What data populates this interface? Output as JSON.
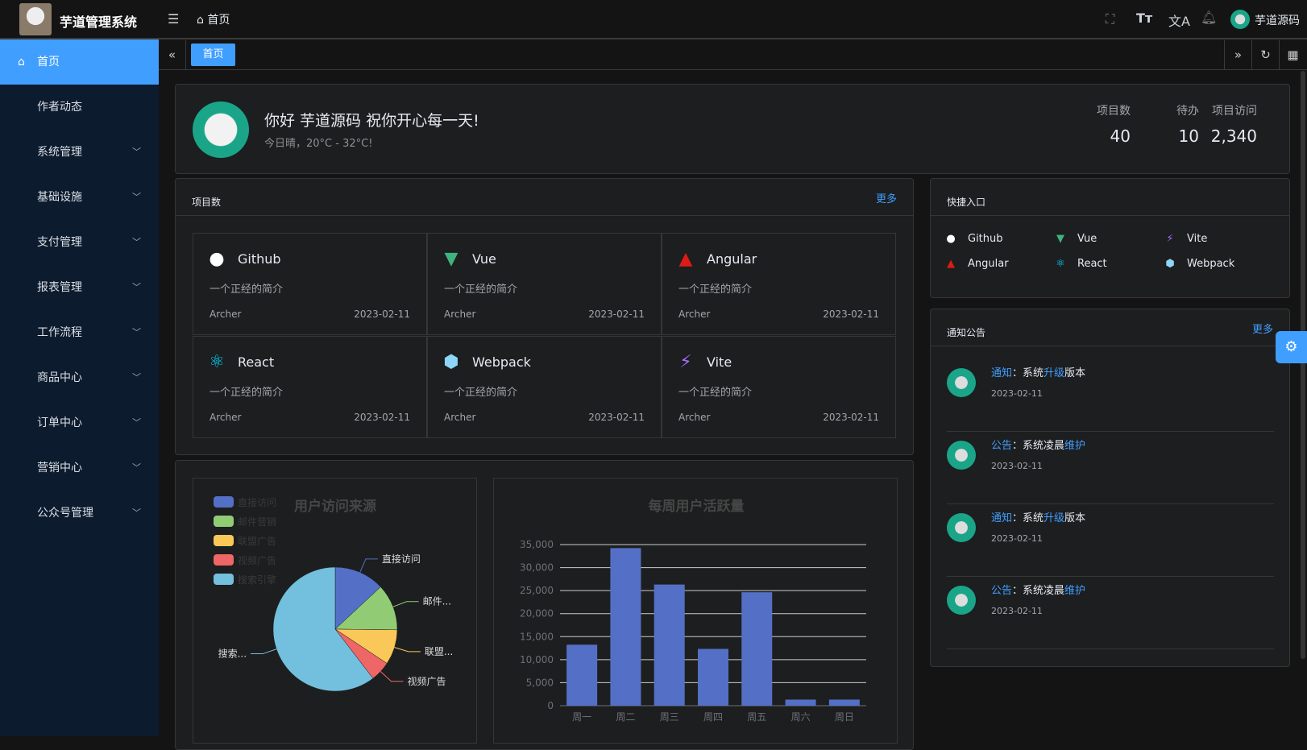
{
  "header": {
    "app_title": "芋道管理系统",
    "breadcrumb": "首页",
    "username": "芋道源码"
  },
  "sidebar": {
    "items": [
      {
        "label": "首页",
        "active": true,
        "expandable": false
      },
      {
        "label": "作者动态",
        "expandable": false
      },
      {
        "label": "系统管理",
        "expandable": true
      },
      {
        "label": "基础设施",
        "expandable": true
      },
      {
        "label": "支付管理",
        "expandable": true
      },
      {
        "label": "报表管理",
        "expandable": true
      },
      {
        "label": "工作流程",
        "expandable": true
      },
      {
        "label": "商品中心",
        "expandable": true
      },
      {
        "label": "订单中心",
        "expandable": true
      },
      {
        "label": "营销中心",
        "expandable": true
      },
      {
        "label": "公众号管理",
        "expandable": true
      }
    ]
  },
  "tabs": [
    {
      "label": "首页",
      "active": true
    }
  ],
  "welcome": {
    "greeting": "你好 芋道源码 祝你开心每一天!",
    "weather": "今日晴，20°C - 32°C!",
    "stats": [
      {
        "label": "项目数",
        "value": "40"
      },
      {
        "label": "待办",
        "value": "10"
      },
      {
        "label": "项目访问",
        "value": "2,340"
      }
    ]
  },
  "projects": {
    "title": "项目数",
    "more": "更多",
    "items": [
      {
        "name": "Github",
        "icon": "github-icon",
        "color": "#ffffff",
        "desc": "一个正经的简介",
        "author": "Archer",
        "date": "2023-02-11"
      },
      {
        "name": "Vue",
        "icon": "vue-icon",
        "color": "#3fb27f",
        "desc": "一个正经的简介",
        "author": "Archer",
        "date": "2023-02-11"
      },
      {
        "name": "Angular",
        "icon": "angular-icon",
        "color": "#dd1b16",
        "desc": "一个正经的简介",
        "author": "Archer",
        "date": "2023-02-11"
      },
      {
        "name": "React",
        "icon": "react-icon",
        "color": "#00d8ff",
        "desc": "一个正经的简介",
        "author": "Archer",
        "date": "2023-02-11"
      },
      {
        "name": "Webpack",
        "icon": "webpack-icon",
        "color": "#8dd6f9",
        "desc": "一个正经的简介",
        "author": "Archer",
        "date": "2023-02-11"
      },
      {
        "name": "Vite",
        "icon": "vite-icon",
        "color": "#a76bff",
        "desc": "一个正经的简介",
        "author": "Archer",
        "date": "2023-02-11"
      }
    ]
  },
  "shortcuts": {
    "title": "快捷入口",
    "items": [
      "Github",
      "Vue",
      "Vite",
      "Angular",
      "React",
      "Webpack"
    ]
  },
  "notices": {
    "title": "通知公告",
    "more": "更多",
    "items": [
      {
        "type": "通知",
        "pre": "：系统",
        "hl": "升级",
        "post": "版本",
        "date": "2023-02-11"
      },
      {
        "type": "公告",
        "pre": "：系统凌晨",
        "hl": "维护",
        "post": "",
        "date": "2023-02-11"
      },
      {
        "type": "通知",
        "pre": "：系统",
        "hl": "升级",
        "post": "版本",
        "date": "2023-02-11"
      },
      {
        "type": "公告",
        "pre": "：系统凌晨",
        "hl": "维护",
        "post": "",
        "date": "2023-02-11"
      }
    ]
  },
  "chart_data": [
    {
      "type": "pie",
      "title": "用户访问来源",
      "legend_position": "top-left",
      "categories": [
        "直接访问",
        "邮件营销",
        "联盟广告",
        "视频广告",
        "搜索引擎"
      ],
      "values": [
        335,
        310,
        234,
        135,
        1548
      ],
      "slice_labels": [
        "直接访问",
        "邮件...",
        "联盟...",
        "视频广告",
        "搜索..."
      ],
      "colors": [
        "#5470c6",
        "#91cc75",
        "#fac858",
        "#ee6666",
        "#73c0de"
      ]
    },
    {
      "type": "bar",
      "title": "每周用户活跃量",
      "categories": [
        "周一",
        "周二",
        "周三",
        "周四",
        "周五",
        "周六",
        "周日"
      ],
      "values": [
        13253,
        34235,
        26321,
        12340,
        24643,
        1322,
        1324
      ],
      "ylim": [
        0,
        35000
      ],
      "yticks": [
        "0",
        "5,000",
        "10,000",
        "15,000",
        "20,000",
        "25,000",
        "30,000",
        "35,000"
      ],
      "grid": true,
      "color": "#5470c6"
    }
  ]
}
